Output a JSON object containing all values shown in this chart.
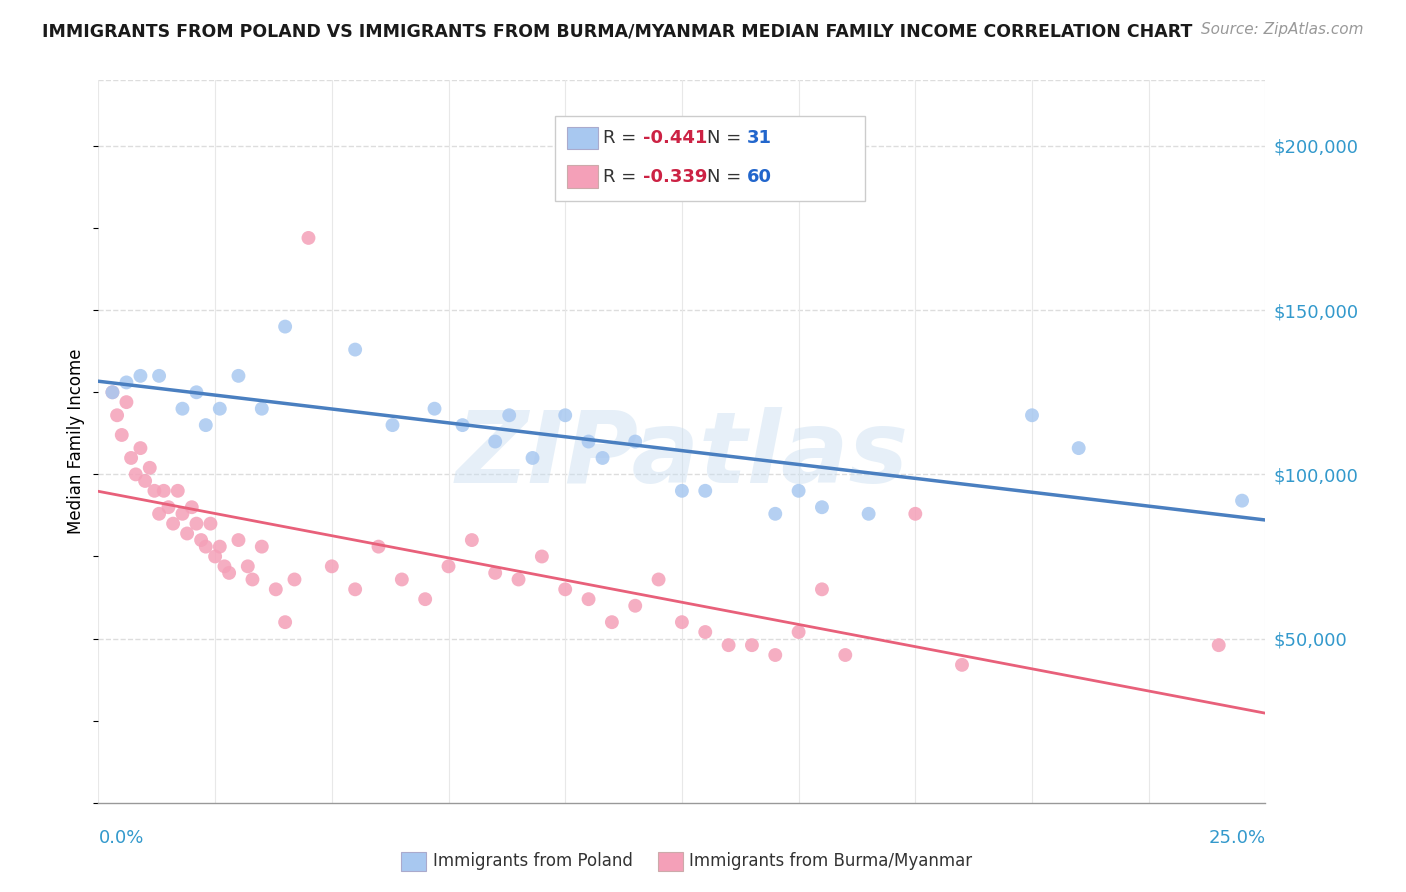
{
  "title": "IMMIGRANTS FROM POLAND VS IMMIGRANTS FROM BURMA/MYANMAR MEDIAN FAMILY INCOME CORRELATION CHART",
  "source": "Source: ZipAtlas.com",
  "ylabel": "Median Family Income",
  "right_ytick_labels": [
    "$50,000",
    "$100,000",
    "$150,000",
    "$200,000"
  ],
  "right_ytick_values": [
    50000,
    100000,
    150000,
    200000
  ],
  "poland_color": "#a8c8f0",
  "burma_color": "#f4a0b8",
  "poland_line_color": "#4a7fc0",
  "burma_line_color": "#e8607a",
  "watermark": "ZIPatlas",
  "xlim": [
    0.0,
    0.25
  ],
  "ylim": [
    0,
    220000
  ],
  "poland_points": [
    [
      0.003,
      125000
    ],
    [
      0.006,
      128000
    ],
    [
      0.009,
      130000
    ],
    [
      0.013,
      130000
    ],
    [
      0.018,
      120000
    ],
    [
      0.021,
      125000
    ],
    [
      0.023,
      115000
    ],
    [
      0.026,
      120000
    ],
    [
      0.03,
      130000
    ],
    [
      0.035,
      120000
    ],
    [
      0.04,
      145000
    ],
    [
      0.055,
      138000
    ],
    [
      0.063,
      115000
    ],
    [
      0.072,
      120000
    ],
    [
      0.078,
      115000
    ],
    [
      0.085,
      110000
    ],
    [
      0.088,
      118000
    ],
    [
      0.093,
      105000
    ],
    [
      0.1,
      118000
    ],
    [
      0.105,
      110000
    ],
    [
      0.108,
      105000
    ],
    [
      0.115,
      110000
    ],
    [
      0.125,
      95000
    ],
    [
      0.13,
      95000
    ],
    [
      0.145,
      88000
    ],
    [
      0.15,
      95000
    ],
    [
      0.155,
      90000
    ],
    [
      0.165,
      88000
    ],
    [
      0.2,
      118000
    ],
    [
      0.21,
      108000
    ],
    [
      0.245,
      92000
    ]
  ],
  "burma_points": [
    [
      0.003,
      125000
    ],
    [
      0.004,
      118000
    ],
    [
      0.005,
      112000
    ],
    [
      0.006,
      122000
    ],
    [
      0.007,
      105000
    ],
    [
      0.008,
      100000
    ],
    [
      0.009,
      108000
    ],
    [
      0.01,
      98000
    ],
    [
      0.011,
      102000
    ],
    [
      0.012,
      95000
    ],
    [
      0.013,
      88000
    ],
    [
      0.014,
      95000
    ],
    [
      0.015,
      90000
    ],
    [
      0.016,
      85000
    ],
    [
      0.017,
      95000
    ],
    [
      0.018,
      88000
    ],
    [
      0.019,
      82000
    ],
    [
      0.02,
      90000
    ],
    [
      0.021,
      85000
    ],
    [
      0.022,
      80000
    ],
    [
      0.023,
      78000
    ],
    [
      0.024,
      85000
    ],
    [
      0.025,
      75000
    ],
    [
      0.026,
      78000
    ],
    [
      0.027,
      72000
    ],
    [
      0.028,
      70000
    ],
    [
      0.03,
      80000
    ],
    [
      0.032,
      72000
    ],
    [
      0.033,
      68000
    ],
    [
      0.035,
      78000
    ],
    [
      0.038,
      65000
    ],
    [
      0.04,
      55000
    ],
    [
      0.042,
      68000
    ],
    [
      0.045,
      172000
    ],
    [
      0.05,
      72000
    ],
    [
      0.055,
      65000
    ],
    [
      0.06,
      78000
    ],
    [
      0.065,
      68000
    ],
    [
      0.07,
      62000
    ],
    [
      0.075,
      72000
    ],
    [
      0.08,
      80000
    ],
    [
      0.085,
      70000
    ],
    [
      0.09,
      68000
    ],
    [
      0.095,
      75000
    ],
    [
      0.1,
      65000
    ],
    [
      0.105,
      62000
    ],
    [
      0.11,
      55000
    ],
    [
      0.115,
      60000
    ],
    [
      0.12,
      68000
    ],
    [
      0.125,
      55000
    ],
    [
      0.13,
      52000
    ],
    [
      0.135,
      48000
    ],
    [
      0.14,
      48000
    ],
    [
      0.145,
      45000
    ],
    [
      0.15,
      52000
    ],
    [
      0.155,
      65000
    ],
    [
      0.16,
      45000
    ],
    [
      0.175,
      88000
    ],
    [
      0.185,
      42000
    ],
    [
      0.24,
      48000
    ]
  ]
}
